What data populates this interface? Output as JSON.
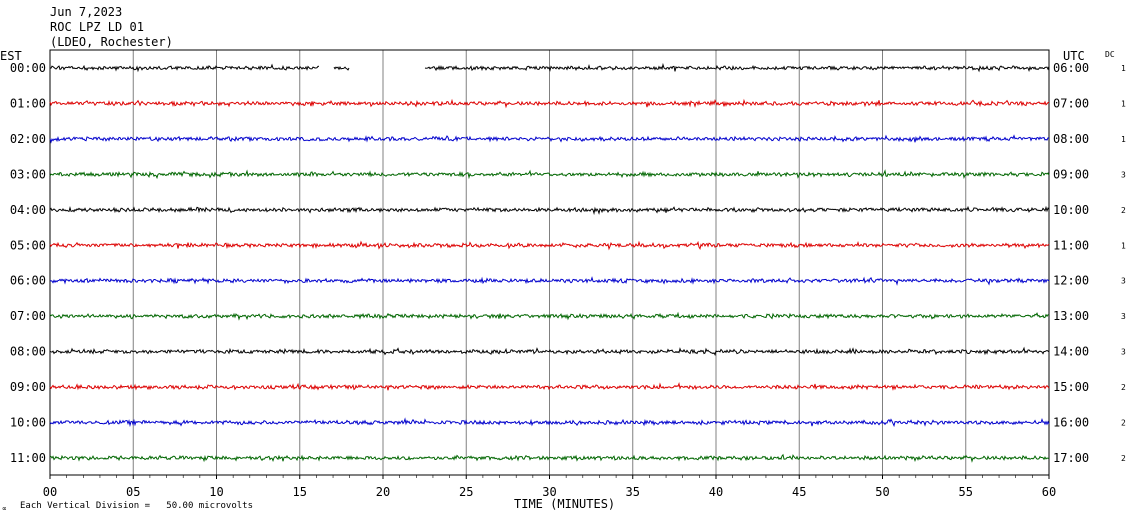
{
  "header": {
    "date": "Jun 7,2023",
    "station": "ROC LPZ LD 01",
    "network": "(LDEO, Rochester)"
  },
  "left_zone": "EST",
  "right_zone": "UTC",
  "dc_label": "DC",
  "footer": {
    "icon": "∝",
    "scale_note": "Each Vertical Division =   50.00 microvolts"
  },
  "chart_data": {
    "type": "line",
    "title": "",
    "xlabel": "TIME (MINUTES)",
    "ylabel": "",
    "xlim": [
      0,
      60
    ],
    "x_ticks": [
      "00",
      "05",
      "10",
      "15",
      "20",
      "25",
      "30",
      "35",
      "40",
      "45",
      "50",
      "55",
      "60"
    ],
    "grid": true,
    "trace_colors": [
      "#000000",
      "#dd0000",
      "#0000cc",
      "#006600"
    ],
    "rows": [
      {
        "est": "00:00",
        "utc": "06:00",
        "dc": "1",
        "color": "#000000",
        "gaps": [
          [
            16.2,
            17.0
          ],
          [
            18.0,
            22.5
          ]
        ]
      },
      {
        "est": "01:00",
        "utc": "07:00",
        "dc": "1",
        "color": "#dd0000",
        "gaps": []
      },
      {
        "est": "02:00",
        "utc": "08:00",
        "dc": "1",
        "color": "#0000cc",
        "gaps": []
      },
      {
        "est": "03:00",
        "utc": "09:00",
        "dc": "3",
        "color": "#006600",
        "gaps": []
      },
      {
        "est": "04:00",
        "utc": "10:00",
        "dc": "2",
        "color": "#000000",
        "gaps": []
      },
      {
        "est": "05:00",
        "utc": "11:00",
        "dc": "1",
        "color": "#dd0000",
        "gaps": []
      },
      {
        "est": "06:00",
        "utc": "12:00",
        "dc": "3",
        "color": "#0000cc",
        "gaps": []
      },
      {
        "est": "07:00",
        "utc": "13:00",
        "dc": "3",
        "color": "#006600",
        "gaps": []
      },
      {
        "est": "08:00",
        "utc": "14:00",
        "dc": "3",
        "color": "#000000",
        "gaps": []
      },
      {
        "est": "09:00",
        "utc": "15:00",
        "dc": "2",
        "color": "#dd0000",
        "gaps": []
      },
      {
        "est": "10:00",
        "utc": "16:00",
        "dc": "2",
        "color": "#0000cc",
        "gaps": []
      },
      {
        "est": "11:00",
        "utc": "17:00",
        "dc": "2",
        "color": "#006600",
        "gaps": []
      }
    ]
  }
}
